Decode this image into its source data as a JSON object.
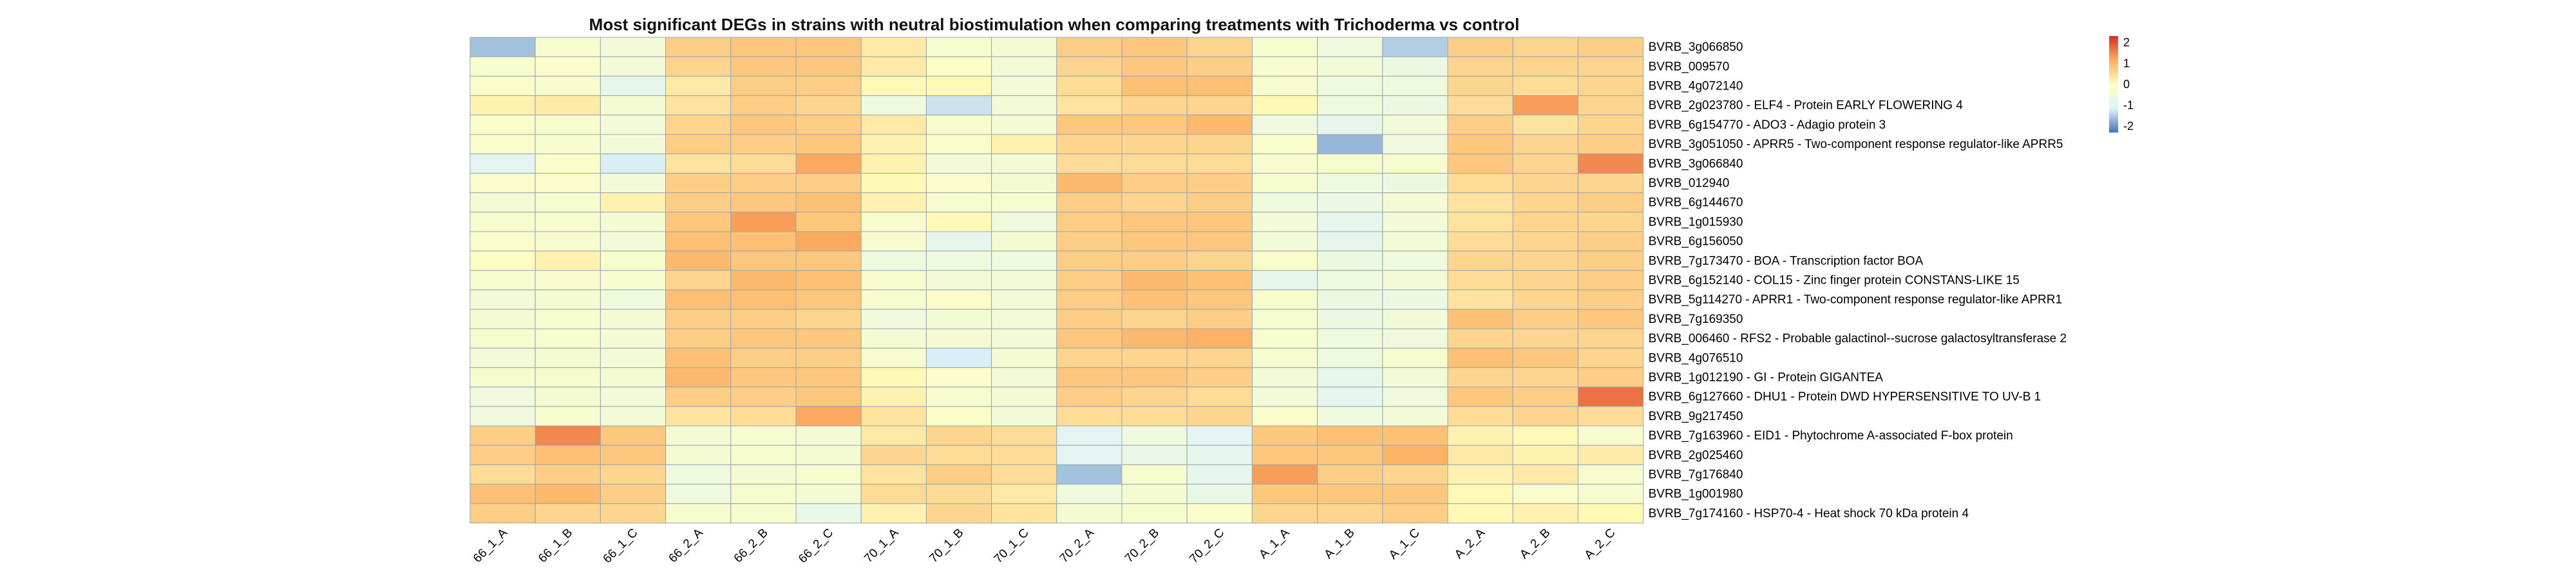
{
  "chart_data": {
    "type": "heatmap",
    "title": "Most significant DEGs in strains with neutral biostimulation when comparing treatments with Trichoderma vs control",
    "columns": [
      "66_1_A",
      "66_1_B",
      "66_1_C",
      "66_2_A",
      "66_2_B",
      "66_2_C",
      "70_1_A",
      "70_1_B",
      "70_1_C",
      "70_2_A",
      "70_2_B",
      "70_2_C",
      "A_1_A",
      "A_1_B",
      "A_1_C",
      "A_2_A",
      "A_2_B",
      "A_2_C"
    ],
    "rows": [
      "BVRB_3g066850",
      "BVRB_009570",
      "BVRB_4g072140",
      "BVRB_2g023780 - ELF4 - Protein EARLY FLOWERING 4",
      "BVRB_6g154770 - ADO3 - Adagio protein 3",
      "BVRB_3g051050 - APRR5 - Two-component response regulator-like APRR5",
      "BVRB_3g066840",
      "BVRB_012940",
      "BVRB_6g144670",
      "BVRB_1g015930",
      "BVRB_6g156050",
      "BVRB_7g173470 - BOA - Transcription factor BOA",
      "BVRB_6g152140 - COL15 - Zinc finger protein CONSTANS-LIKE 15",
      "BVRB_5g114270 - APRR1 - Two-component response regulator-like APRR1",
      "BVRB_7g169350",
      "BVRB_006460 - RFS2 - Probable galactinol--sucrose galactosyltransferase 2",
      "BVRB_4g076510",
      "BVRB_1g012190 - GI - Protein GIGANTEA",
      "BVRB_6g127660 - DHU1 - Protein DWD HYPERSENSITIVE TO UV-B 1",
      "BVRB_9g217450",
      "BVRB_7g163960 - EID1 - Phytochrome A-associated F-box protein",
      "BVRB_2g025460",
      "BVRB_7g176840",
      "BVRB_1g001980",
      "BVRB_7g174160 - HSP70-4 - Heat shock 70 kDa protein 4"
    ],
    "values": [
      [
        -1.6,
        -0.3,
        -0.5,
        0.7,
        0.8,
        0.8,
        0.3,
        -0.3,
        -0.4,
        0.7,
        0.8,
        0.6,
        -0.3,
        -0.6,
        -1.5,
        0.7,
        0.6,
        0.7
      ],
      [
        -0.3,
        -0.2,
        -0.5,
        0.6,
        0.8,
        0.8,
        0.3,
        -0.1,
        -0.5,
        0.6,
        0.8,
        0.7,
        -0.3,
        -0.5,
        -0.7,
        0.6,
        0.6,
        0.6
      ],
      [
        -0.2,
        -0.3,
        -0.9,
        0.3,
        0.7,
        0.7,
        0.1,
        0.1,
        -0.5,
        0.5,
        0.9,
        0.9,
        -0.3,
        -0.6,
        -0.6,
        0.6,
        0.5,
        0.6
      ],
      [
        0.2,
        0.3,
        -0.4,
        0.4,
        0.7,
        0.6,
        -0.6,
        -1.3,
        -0.5,
        0.4,
        0.6,
        0.6,
        0.1,
        -0.6,
        -0.7,
        0.5,
        1.3,
        0.6
      ],
      [
        -0.2,
        -0.3,
        -0.5,
        0.6,
        0.8,
        0.7,
        0.3,
        -0.3,
        -0.4,
        0.8,
        0.8,
        1.0,
        -0.6,
        -0.9,
        -0.5,
        0.7,
        0.4,
        0.6
      ],
      [
        -0.2,
        -0.3,
        -0.5,
        0.7,
        0.7,
        0.8,
        0.2,
        -0.2,
        0.2,
        0.6,
        0.6,
        0.6,
        -0.2,
        -1.7,
        -0.6,
        0.8,
        0.6,
        0.7
      ],
      [
        -1.0,
        -0.2,
        -1.2,
        0.4,
        0.5,
        1.2,
        0.2,
        -0.5,
        -0.4,
        0.5,
        0.5,
        0.5,
        -0.3,
        -0.3,
        -0.3,
        0.8,
        0.6,
        1.5
      ],
      [
        -0.2,
        -0.2,
        -0.5,
        0.7,
        0.7,
        0.7,
        0.1,
        -0.2,
        -0.4,
        1.0,
        0.7,
        0.7,
        -0.3,
        -0.6,
        -0.7,
        0.5,
        0.6,
        0.6
      ],
      [
        -0.4,
        -0.3,
        0.2,
        0.7,
        0.8,
        0.9,
        0.2,
        -0.3,
        -0.3,
        0.7,
        0.6,
        0.7,
        -0.6,
        -0.7,
        -0.4,
        0.4,
        0.6,
        0.7
      ],
      [
        -0.3,
        -0.3,
        -0.4,
        0.8,
        1.3,
        0.8,
        -0.3,
        0.1,
        -0.6,
        0.7,
        0.8,
        0.8,
        -0.5,
        -0.9,
        -0.5,
        0.4,
        0.6,
        0.6
      ],
      [
        -0.2,
        -0.3,
        -0.5,
        0.9,
        0.9,
        1.2,
        -0.3,
        -0.9,
        -0.4,
        0.7,
        0.8,
        0.8,
        -0.5,
        -0.9,
        -0.5,
        0.5,
        0.6,
        0.7
      ],
      [
        -0.1,
        0.2,
        -0.3,
        1.0,
        0.8,
        0.8,
        -0.6,
        -0.6,
        -0.6,
        0.7,
        0.7,
        0.6,
        -0.2,
        -0.7,
        -0.6,
        0.6,
        0.6,
        0.7
      ],
      [
        -0.3,
        -0.3,
        -0.3,
        0.6,
        1.0,
        0.9,
        -0.3,
        -0.5,
        -0.5,
        0.7,
        1.0,
        0.9,
        -0.9,
        -0.6,
        -0.5,
        0.5,
        0.6,
        0.7
      ],
      [
        -0.5,
        -0.4,
        -0.6,
        0.9,
        0.9,
        0.8,
        -0.3,
        -0.2,
        -0.5,
        0.7,
        0.9,
        0.8,
        -0.3,
        -0.7,
        -0.7,
        0.4,
        0.6,
        0.7
      ],
      [
        -0.4,
        -0.3,
        -0.4,
        0.7,
        0.7,
        0.6,
        -0.6,
        -0.4,
        -0.5,
        0.7,
        0.6,
        0.7,
        -0.3,
        -0.7,
        -0.5,
        0.9,
        0.7,
        0.8
      ],
      [
        -0.3,
        -0.3,
        -0.4,
        0.7,
        0.8,
        0.8,
        -0.4,
        -0.4,
        -0.5,
        0.8,
        1.0,
        1.1,
        -0.3,
        -0.6,
        -0.6,
        0.6,
        0.6,
        0.6
      ],
      [
        -0.5,
        -0.4,
        -0.5,
        0.9,
        0.7,
        0.7,
        -0.3,
        -1.2,
        -0.4,
        0.6,
        0.6,
        0.6,
        -0.3,
        -0.6,
        -0.3,
        0.9,
        0.8,
        0.6
      ],
      [
        -0.3,
        -0.3,
        -0.4,
        1.0,
        0.8,
        0.8,
        0.1,
        -0.2,
        -0.5,
        0.8,
        0.8,
        0.7,
        -0.5,
        -0.9,
        -0.5,
        0.6,
        0.6,
        0.7
      ],
      [
        -0.6,
        -0.4,
        -0.5,
        0.7,
        0.7,
        0.8,
        0.2,
        -0.3,
        -0.4,
        0.7,
        0.6,
        0.5,
        -0.5,
        -0.9,
        -0.6,
        0.8,
        0.7,
        1.7
      ],
      [
        -0.6,
        -0.3,
        -0.5,
        0.4,
        0.5,
        1.2,
        0.4,
        -0.2,
        -0.5,
        0.5,
        0.5,
        0.6,
        -0.2,
        -0.6,
        -0.5,
        0.5,
        0.6,
        0.5
      ],
      [
        0.7,
        1.5,
        0.8,
        -0.4,
        -0.3,
        -0.4,
        0.3,
        0.6,
        0.5,
        -1.0,
        -0.6,
        -1.0,
        0.8,
        0.9,
        0.9,
        0.2,
        0.1,
        -0.3
      ],
      [
        0.7,
        0.9,
        0.8,
        -0.4,
        -0.3,
        -0.4,
        0.6,
        0.5,
        0.5,
        -1.0,
        -0.8,
        -0.9,
        0.8,
        0.8,
        1.1,
        0.3,
        0.2,
        0.3
      ],
      [
        0.5,
        0.7,
        0.6,
        -0.6,
        -0.4,
        -0.3,
        0.4,
        0.7,
        0.5,
        -1.6,
        -0.3,
        -0.9,
        1.3,
        0.7,
        0.6,
        0.2,
        0.3,
        -0.3
      ],
      [
        0.9,
        1.0,
        0.7,
        -0.6,
        -0.3,
        -0.4,
        0.5,
        0.5,
        0.3,
        -0.6,
        -0.4,
        -0.8,
        0.8,
        0.8,
        0.8,
        0.1,
        -0.2,
        -0.3
      ],
      [
        0.7,
        0.6,
        0.6,
        -0.3,
        -0.3,
        -0.8,
        0.2,
        0.6,
        0.4,
        -0.4,
        -0.3,
        -0.2,
        0.6,
        0.6,
        0.7,
        0.1,
        0.2,
        0.1
      ]
    ],
    "legend": {
      "ticks": [
        2,
        1,
        0,
        -1,
        -2
      ],
      "range": [
        -2.3,
        2.3
      ],
      "placement": "top-right"
    },
    "colors": {
      "low": "#4575b4",
      "midlow": "#e0f3f8",
      "mid": "#ffffbf",
      "midhigh": "#fdae61",
      "high": "#d73027",
      "cell_border": "#9aa6ad"
    }
  }
}
